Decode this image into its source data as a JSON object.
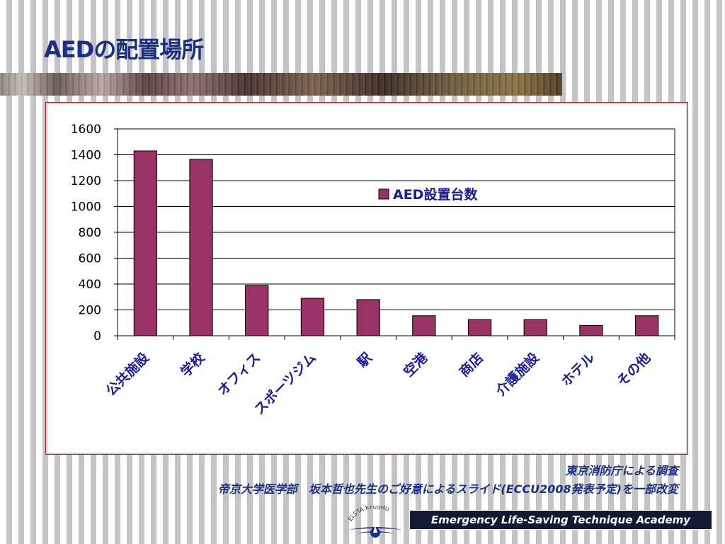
{
  "slide": {
    "title": "AEDの配置場所",
    "footer_line1": "東京消防庁による調査",
    "footer_line2": "帝京大学医学部　坂本哲也先生のご好意によるスライド(ECCU2008発表予定)を一部改変",
    "academy_banner": "Emergency Life-Saving Technique Academy",
    "logo_text": "ELSTA KYUSHU",
    "colors": {
      "title": "#1a2f86",
      "bar": "#993366",
      "label_text": "#1a1a9c",
      "banner_bg": "#111a33"
    }
  },
  "chart_data": {
    "type": "bar",
    "categories": [
      "公共施設",
      "学校",
      "オフィス",
      "スポーツジム",
      "駅",
      "空港",
      "商店",
      "介護施設",
      "ホテル",
      "その他"
    ],
    "series": [
      {
        "name": "AED設置台数",
        "values": [
          1430,
          1365,
          390,
          290,
          280,
          155,
          125,
          125,
          80,
          155
        ]
      }
    ],
    "ylim": [
      0,
      1600
    ],
    "yticks": [
      0,
      200,
      400,
      600,
      800,
      1000,
      1200,
      1400,
      1600
    ],
    "grid": true,
    "legend": "top-right"
  }
}
